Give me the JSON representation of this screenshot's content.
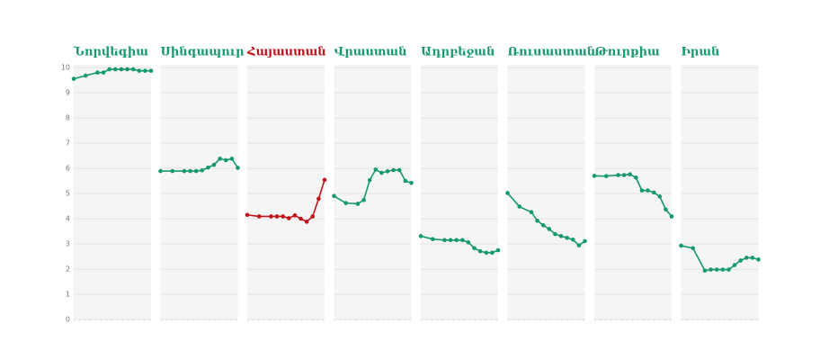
{
  "chart_data": {
    "type": "line",
    "x": [
      0,
      2,
      4,
      5,
      6,
      7,
      8,
      9,
      10,
      11,
      12,
      13
    ],
    "xlim": [
      0,
      13
    ],
    "ylim": [
      0,
      10
    ],
    "yticks": [
      0,
      1,
      2,
      3,
      4,
      5,
      6,
      7,
      8,
      9,
      10
    ],
    "grid": true,
    "series": [
      {
        "name": "Նորվեգիա",
        "color": "#16996b",
        "values": [
          9.55,
          9.68,
          9.8,
          9.8,
          9.93,
          9.93,
          9.93,
          9.93,
          9.93,
          9.87,
          9.87,
          9.87
        ]
      },
      {
        "name": "Սինգապուր",
        "color": "#16996b",
        "values": [
          5.89,
          5.89,
          5.89,
          5.89,
          5.89,
          5.92,
          6.03,
          6.14,
          6.38,
          6.32,
          6.38,
          6.02
        ]
      },
      {
        "name": "Հայաստան",
        "color": "#c0141b",
        "values": [
          4.15,
          4.09,
          4.09,
          4.09,
          4.09,
          4.02,
          4.13,
          4.0,
          3.88,
          4.09,
          4.79,
          5.54
        ]
      },
      {
        "name": "Վրաստան",
        "color": "#16996b",
        "values": [
          4.9,
          4.62,
          4.59,
          4.74,
          5.53,
          5.95,
          5.82,
          5.88,
          5.93,
          5.93,
          5.5,
          5.42
        ]
      },
      {
        "name": "Ադրբեջան",
        "color": "#16996b",
        "values": [
          3.31,
          3.19,
          3.15,
          3.15,
          3.15,
          3.15,
          3.06,
          2.83,
          2.71,
          2.65,
          2.65,
          2.75
        ]
      },
      {
        "name": "Ռուսաստան",
        "color": "#16996b",
        "values": [
          5.02,
          4.48,
          4.26,
          3.92,
          3.74,
          3.59,
          3.39,
          3.31,
          3.24,
          3.17,
          2.94,
          3.11
        ]
      },
      {
        "name": "Թուրքիա",
        "color": "#16996b",
        "values": [
          5.7,
          5.69,
          5.73,
          5.73,
          5.76,
          5.63,
          5.12,
          5.12,
          5.04,
          4.88,
          4.37,
          4.09
        ]
      },
      {
        "name": "Իրան",
        "color": "#16996b",
        "values": [
          2.93,
          2.83,
          1.94,
          1.98,
          1.98,
          1.98,
          1.98,
          2.16,
          2.34,
          2.45,
          2.45,
          2.38
        ]
      }
    ]
  }
}
